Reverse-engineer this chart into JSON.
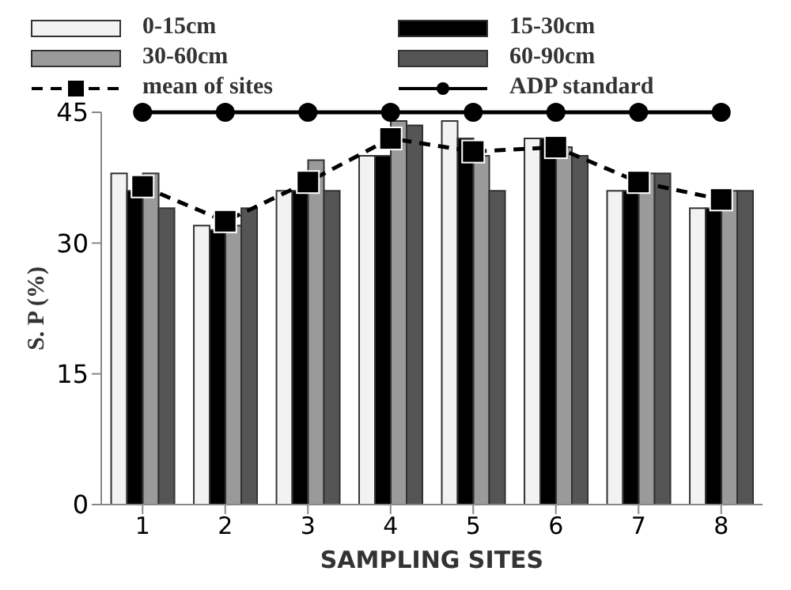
{
  "chart_data": {
    "type": "bar",
    "xlabel": "SAMPLING SITES",
    "ylabel": "S. P (%)",
    "categories": [
      "1",
      "2",
      "3",
      "4",
      "5",
      "6",
      "7",
      "8"
    ],
    "series": [
      {
        "name": "0-15cm",
        "color": "#f2f2f2",
        "values": [
          38,
          32,
          36,
          40,
          44,
          42,
          36,
          34
        ]
      },
      {
        "name": "15-30cm",
        "color": "#000000",
        "values": [
          36,
          31.5,
          36,
          40,
          42,
          42,
          36,
          34
        ]
      },
      {
        "name": "30-60cm",
        "color": "#9a9a9a",
        "values": [
          38,
          32,
          39.5,
          44,
          40,
          41,
          38,
          36
        ]
      },
      {
        "name": "60-90cm",
        "color": "#555555",
        "values": [
          34,
          34,
          36,
          43.5,
          36,
          40,
          38,
          36
        ]
      },
      {
        "name": "mean of sites",
        "type": "line",
        "color": "#000000",
        "marker": "square",
        "line_style": "dashed",
        "values": [
          36.5,
          32.5,
          37,
          42,
          40.5,
          41,
          37,
          35
        ]
      },
      {
        "name": "ADP standard",
        "type": "line",
        "color": "#000000",
        "marker": "circle",
        "line_style": "solid",
        "values": [
          45,
          45,
          45,
          45,
          45,
          45,
          45,
          45
        ]
      }
    ],
    "ylim": [
      0,
      45
    ],
    "yticks": [
      0,
      15,
      30,
      45
    ],
    "legend": "top"
  }
}
